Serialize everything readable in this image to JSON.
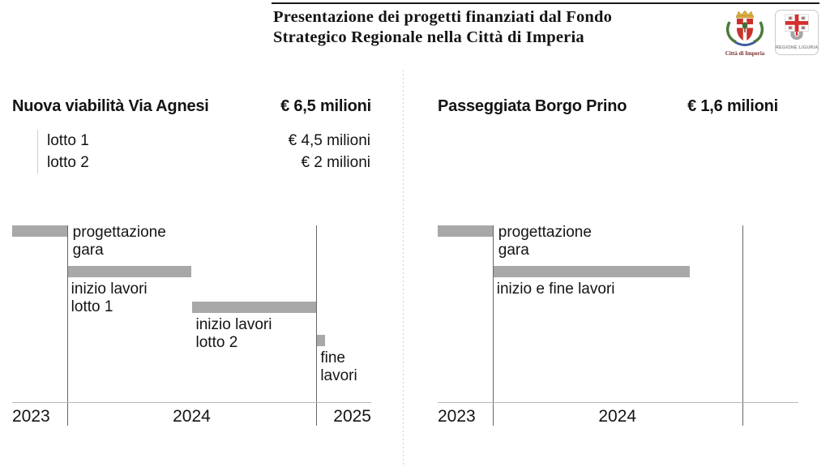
{
  "header": {
    "title_line1": "Presentazione dei progetti finanziati dal Fondo",
    "title_line2": "Strategico Regionale nella Città di Imperia",
    "logos": [
      {
        "name": "citta-di-imperia",
        "label": "Città di Imperia"
      },
      {
        "name": "regione-liguria",
        "label": "REGIONE LIGURIA"
      }
    ]
  },
  "colors": {
    "bar": "#a8a8a8",
    "year_gridline": "#666666",
    "axis_line": "#b8b8b8",
    "text": "#141414",
    "divider_dots": "#cfcfcf",
    "imperia_shield_red": "#c9312b",
    "imperia_crown_gold": "#ddaf3e",
    "imperia_branch_green": "#4c7a3d",
    "liguria_cross_red": "#d32f2f",
    "liguria_gray": "#a5a5a5"
  },
  "chart_data": [
    {
      "type": "gantt",
      "project": "Nuova viabilità Via Agnesi",
      "budget": "€ 6,5 milioni",
      "breakdown": [
        {
          "label": "lotto 1",
          "amount": "€ 4,5 milioni"
        },
        {
          "label": "lotto 2",
          "amount": "€ 2 milioni"
        }
      ],
      "axis": {
        "min": 2023.78,
        "max": 2025.22,
        "boundaries": [
          2024,
          2025
        ],
        "regions": [
          {
            "label": "2023",
            "start": 2023.78,
            "end": 2024
          },
          {
            "label": "2024",
            "start": 2024,
            "end": 2025
          },
          {
            "label": "2025",
            "start": 2025,
            "end": 2025.22
          }
        ]
      },
      "bars": [
        {
          "label_lines": [
            "progettazione",
            "gara"
          ],
          "start": 2023.78,
          "end": 2024.0,
          "row": 0,
          "label_position": "right"
        },
        {
          "label_lines": [
            "inizio lavori",
            "lotto 1"
          ],
          "start": 2024.0,
          "end": 2024.5,
          "row": 1,
          "label_position": "below"
        },
        {
          "label_lines": [
            "inizio lavori",
            "lotto 2"
          ],
          "start": 2024.5,
          "end": 2025.0,
          "row": 2,
          "label_position": "below"
        },
        {
          "label_lines": [
            "fine",
            "lavori"
          ],
          "start": 2025.0,
          "end": 2025.035,
          "row": 3,
          "label_position": "below"
        }
      ]
    },
    {
      "type": "gantt",
      "project": "Passeggiata Borgo Prino",
      "budget": "€ 1,6 milioni",
      "breakdown": [],
      "axis": {
        "min": 2023.78,
        "max": 2025.225,
        "boundaries": [
          2024,
          2025
        ],
        "regions": [
          {
            "label": "2023",
            "start": 2023.78,
            "end": 2024
          },
          {
            "label": "2024",
            "start": 2024,
            "end": 2025
          }
        ]
      },
      "bars": [
        {
          "label_lines": [
            "progettazione",
            "gara"
          ],
          "start": 2023.78,
          "end": 2024.0,
          "row": 0,
          "label_position": "right"
        },
        {
          "label_lines": [
            "inizio e fine lavori"
          ],
          "start": 2024.0,
          "end": 2024.79,
          "row": 1,
          "label_position": "below"
        }
      ]
    }
  ]
}
